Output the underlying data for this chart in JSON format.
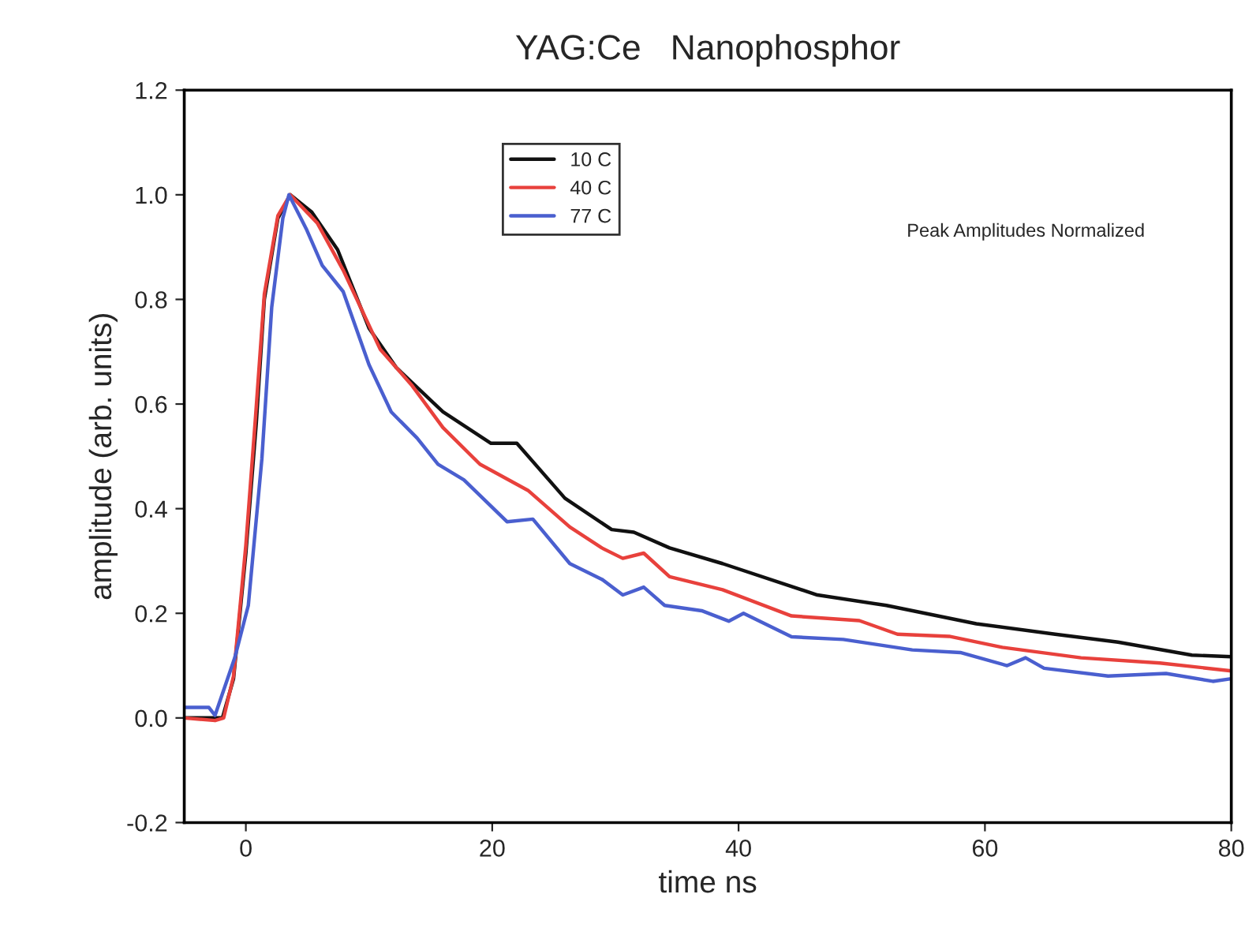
{
  "chart_data": {
    "type": "line",
    "title": "YAG:Ce   Nanophosphor",
    "xlabel": "time ns",
    "ylabel": "amplitude (arb. units)",
    "annotations": [
      "Peak Amplitudes Normalized"
    ],
    "xlim": [
      -5,
      80
    ],
    "xticks": [
      0,
      20,
      40,
      60,
      80
    ],
    "ylim": [
      -0.2,
      1.2
    ],
    "yticks": [
      -0.2,
      {
        "value": 0,
        "label": "0.0"
      },
      0.2,
      0.4,
      0.6,
      0.8,
      {
        "value": 1,
        "label": "1.0"
      },
      1.2
    ],
    "grid": false,
    "legend": "top",
    "marker": "none",
    "line_style": "solid",
    "series": [
      {
        "name": "10 C",
        "color": "#111111",
        "x": [
          -5,
          -1.9,
          -1.0,
          0,
          0.85,
          1.5,
          2.6,
          3.6,
          5.35,
          7.45,
          10,
          12.2,
          16,
          19.9,
          22,
          25.9,
          29.7,
          31.5,
          34.4,
          38.7,
          46.4,
          52,
          59.3,
          65.7,
          70.8,
          76.8,
          80
        ],
        "values": [
          0.0,
          0.0,
          0.075,
          0.315,
          0.565,
          0.8,
          0.955,
          1.0,
          0.967,
          0.895,
          0.745,
          0.67,
          0.585,
          0.525,
          0.525,
          0.42,
          0.36,
          0.355,
          0.325,
          0.295,
          0.235,
          0.215,
          0.18,
          0.16,
          0.145,
          0.12,
          0.117
        ]
      },
      {
        "name": "40 C",
        "color": "#e8413c",
        "x": [
          -5,
          -2.5,
          -1.8,
          -1.0,
          0,
          0.8,
          1.5,
          2.6,
          3.6,
          5.8,
          7.9,
          10.9,
          13.5,
          16,
          19,
          22.9,
          26.3,
          28.9,
          30.6,
          32.3,
          34.4,
          38.7,
          44.3,
          49.8,
          52.9,
          57.1,
          61.4,
          67.8,
          74.2,
          80
        ],
        "values": [
          0.0,
          -0.005,
          0.0,
          0.08,
          0.33,
          0.58,
          0.81,
          0.96,
          1.0,
          0.946,
          0.856,
          0.705,
          0.635,
          0.555,
          0.485,
          0.435,
          0.365,
          0.325,
          0.305,
          0.315,
          0.27,
          0.245,
          0.195,
          0.186,
          0.16,
          0.156,
          0.135,
          0.115,
          0.105,
          0.09
        ]
      },
      {
        "name": "77 C",
        "color": "#4a5fcf",
        "x": [
          -5,
          -3,
          -2.5,
          -0.9,
          0.2,
          1.3,
          2.1,
          3.0,
          3.5,
          4.9,
          6.2,
          7.9,
          10,
          11.8,
          13.9,
          15.6,
          17.7,
          21.2,
          23.3,
          26.3,
          28.9,
          30.6,
          32.3,
          34,
          37,
          39.2,
          40.4,
          44.3,
          48.5,
          54.1,
          58,
          61.8,
          63.3,
          64.8,
          70,
          74.7,
          78.5,
          80
        ],
        "values": [
          0.02,
          0.02,
          0.005,
          0.115,
          0.215,
          0.495,
          0.785,
          0.955,
          1.0,
          0.935,
          0.865,
          0.815,
          0.675,
          0.585,
          0.535,
          0.485,
          0.455,
          0.375,
          0.38,
          0.295,
          0.265,
          0.235,
          0.25,
          0.215,
          0.205,
          0.185,
          0.2,
          0.155,
          0.15,
          0.13,
          0.125,
          0.1,
          0.115,
          0.095,
          0.08,
          0.085,
          0.07,
          0.075
        ]
      }
    ]
  }
}
